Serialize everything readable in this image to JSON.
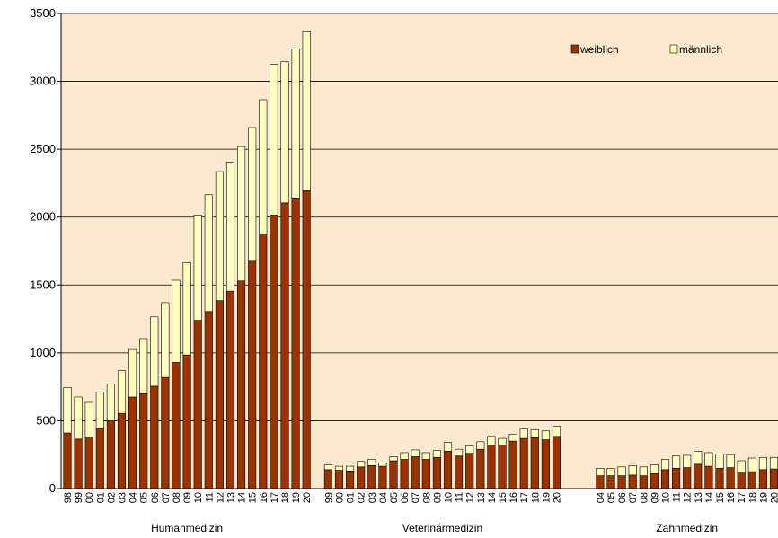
{
  "chart_data": {
    "type": "grouped-stacked-bar",
    "series": [
      {
        "name": "weiblich",
        "color": "#993300"
      },
      {
        "name": "männlich",
        "color": "#ffffc0"
      }
    ],
    "ylim": [
      0,
      3500
    ],
    "yticks": [
      0,
      500,
      1000,
      1500,
      2000,
      2500,
      3000,
      3500
    ],
    "grid": true,
    "legend": "top-right",
    "background": "#fde9d0",
    "groups": [
      {
        "label": "Humanmedizin",
        "categories": [
          "98",
          "99",
          "00",
          "01",
          "02",
          "03",
          "04",
          "05",
          "06",
          "07",
          "08",
          "09",
          "10",
          "11",
          "12",
          "13",
          "14",
          "15",
          "16",
          "17",
          "18",
          "19",
          "20"
        ],
        "series": [
          {
            "values": [
              410,
              365,
              380,
              440,
              500,
              555,
              675,
              700,
              755,
              820,
              930,
              985,
              1240,
              1305,
              1385,
              1455,
              1530,
              1675,
              1875,
              2015,
              2105,
              2135,
              2195
            ]
          },
          {
            "values": [
              335,
              310,
              255,
              270,
              270,
              315,
              350,
              405,
              510,
              550,
              605,
              680,
              775,
              860,
              950,
              950,
              990,
              985,
              990,
              1110,
              1040,
              1105,
              1170
            ]
          }
        ]
      },
      {
        "label": "Veterinärmedizin",
        "categories": [
          "99",
          "00",
          "01",
          "02",
          "03",
          "04",
          "05",
          "06",
          "07",
          "08",
          "09",
          "10",
          "11",
          "12",
          "13",
          "14",
          "15",
          "16",
          "17",
          "18",
          "19",
          "20"
        ],
        "series": [
          {
            "values": [
              140,
              135,
              130,
              160,
              170,
              165,
              205,
              215,
              235,
              215,
              230,
              275,
              240,
              260,
              290,
              320,
              320,
              350,
              370,
              375,
              360,
              385
            ]
          },
          {
            "values": [
              35,
              30,
              35,
              40,
              45,
              25,
              30,
              50,
              50,
              50,
              50,
              65,
              50,
              55,
              55,
              65,
              50,
              50,
              70,
              60,
              65,
              75
            ]
          }
        ]
      },
      {
        "label": "Zahnmedizin",
        "categories": [
          "04",
          "05",
          "06",
          "07",
          "08",
          "09",
          "10",
          "11",
          "12",
          "13",
          "14",
          "15",
          "16",
          "17",
          "18",
          "19",
          "20"
        ],
        "series": [
          {
            "values": [
              95,
              95,
              95,
              100,
              95,
              110,
              140,
              150,
              155,
              180,
              165,
              150,
              155,
              115,
              125,
              140,
              145
            ]
          },
          {
            "values": [
              55,
              55,
              65,
              70,
              65,
              65,
              75,
              90,
              90,
              95,
              100,
              105,
              95,
              90,
              100,
              90,
              85
            ]
          }
        ]
      }
    ]
  }
}
